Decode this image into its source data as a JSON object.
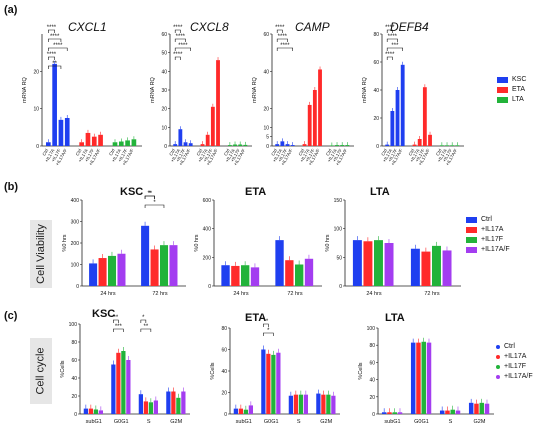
{
  "panel_labels": [
    "(a)",
    "(b)",
    "(c)"
  ],
  "colors": {
    "ctrl_blue": "#1f3ff0",
    "il17a_red": "#ff2a2a",
    "il17f_green": "#22b33a",
    "il17af_purple": "#a33df0",
    "sig_line": "#111111"
  },
  "legend_a": {
    "items": [
      "KSC",
      "ETA",
      "LTA"
    ]
  },
  "legend_b": {
    "items": [
      "Ctrl",
      "+IL17A",
      "+IL17F",
      "+IL17A/F"
    ]
  },
  "legend_c": {
    "items": [
      "Ctrl",
      "+IL17A",
      "+IL17F",
      "+IL17A/F"
    ]
  },
  "side_labels": {
    "b": "Cell Viability",
    "c": "Cell cycle"
  },
  "chart_data": [
    {
      "id": "a-cxcl1",
      "type": "bar",
      "title": "CXCL1",
      "ylabel": "mRNA RQ",
      "categories": [
        "Ctrl",
        "+IL17A",
        "+IL17F",
        "+IL17A/F"
      ],
      "series": [
        {
          "name": "KSC",
          "values": [
            1,
            22,
            7,
            7.5
          ]
        },
        {
          "name": "ETA",
          "values": [
            1,
            3.5,
            2.5,
            3
          ]
        },
        {
          "name": "LTA",
          "values": [
            1,
            1.2,
            1.5,
            1.8
          ]
        }
      ],
      "ylim": [
        0,
        30
      ],
      "ticks": [
        0,
        10,
        20
      ],
      "significance": [
        "****",
        "****",
        "****",
        "****",
        "**"
      ]
    },
    {
      "id": "a-cxcl8",
      "type": "bar",
      "title": "CXCL8",
      "ylabel": "mRNA RQ",
      "categories": [
        "Ctrl",
        "+IL17A",
        "+IL17F",
        "+IL17A/F"
      ],
      "series": [
        {
          "name": "KSC",
          "values": [
            1,
            9,
            2,
            1.5
          ]
        },
        {
          "name": "ETA",
          "values": [
            1,
            6,
            21,
            46
          ]
        },
        {
          "name": "LTA",
          "values": [
            0.5,
            0.8,
            0.8,
            0.6
          ]
        }
      ],
      "ylim": [
        0,
        60
      ],
      "ticks": [
        0,
        10,
        20,
        30,
        40,
        50,
        60
      ],
      "significance": [
        "****",
        "****",
        "****",
        "****"
      ]
    },
    {
      "id": "a-camp",
      "type": "bar",
      "title": "CAMP",
      "ylabel": "mRNA RQ",
      "categories": [
        "Ctrl",
        "+IL17A",
        "+IL17F",
        "+IL17A/F"
      ],
      "series": [
        {
          "name": "KSC",
          "values": [
            1,
            2.5,
            1,
            0.5
          ]
        },
        {
          "name": "ETA",
          "values": [
            1,
            22,
            30,
            41
          ]
        },
        {
          "name": "LTA",
          "values": [
            0.3,
            0.5,
            0.5,
            0.5
          ]
        }
      ],
      "ylim": [
        0,
        60
      ],
      "ticks": [
        0,
        5,
        10,
        20,
        40,
        60
      ],
      "significance": [
        "****",
        "****",
        "****"
      ]
    },
    {
      "id": "a-defb4",
      "type": "bar",
      "title": "DEFB4",
      "ylabel": "mRNA RQ",
      "categories": [
        "Ctrl",
        "+IL17A",
        "+IL17F",
        "+IL17A/F"
      ],
      "series": [
        {
          "name": "KSC",
          "values": [
            1,
            25,
            40,
            58
          ]
        },
        {
          "name": "ETA",
          "values": [
            1,
            5,
            42,
            8
          ]
        },
        {
          "name": "LTA",
          "values": [
            0.5,
            0.5,
            0.5,
            0.5
          ]
        }
      ],
      "ylim": [
        0,
        80
      ],
      "ticks": [
        0,
        20,
        40,
        60,
        80
      ],
      "significance": [
        "****",
        "****",
        "***",
        "****"
      ]
    },
    {
      "id": "b-ksc",
      "type": "bar",
      "title": "KSC",
      "ylabel": "%0 hrs",
      "categories": [
        "24 hrs",
        "72 hrs"
      ],
      "series": [
        {
          "name": "Ctrl",
          "values": [
            105,
            280
          ]
        },
        {
          "name": "+IL17A",
          "values": [
            130,
            170
          ]
        },
        {
          "name": "+IL17F",
          "values": [
            140,
            190
          ]
        },
        {
          "name": "+IL17A/F",
          "values": [
            150,
            190
          ]
        }
      ],
      "ylim": [
        0,
        400
      ],
      "ticks": [
        0,
        100,
        200,
        300,
        400
      ],
      "significance": [
        "*",
        "*",
        "**"
      ]
    },
    {
      "id": "b-eta",
      "type": "bar",
      "title": "ETA",
      "ylabel": "%0 hrs",
      "categories": [
        "24 hrs",
        "72 hrs"
      ],
      "series": [
        {
          "name": "Ctrl",
          "values": [
            145,
            320
          ]
        },
        {
          "name": "+IL17A",
          "values": [
            140,
            180
          ]
        },
        {
          "name": "+IL17F",
          "values": [
            145,
            150
          ]
        },
        {
          "name": "+IL17A/F",
          "values": [
            130,
            190
          ]
        }
      ],
      "ylim": [
        0,
        600
      ],
      "ticks": [
        0,
        200,
        400,
        600
      ],
      "significance": []
    },
    {
      "id": "b-lta",
      "type": "bar",
      "title": "LTA",
      "ylabel": "%0 hrs",
      "categories": [
        "24 hrs",
        "72 hrs"
      ],
      "series": [
        {
          "name": "Ctrl",
          "values": [
            80,
            65
          ]
        },
        {
          "name": "+IL17A",
          "values": [
            78,
            60
          ]
        },
        {
          "name": "+IL17F",
          "values": [
            80,
            70
          ]
        },
        {
          "name": "+IL17A/F",
          "values": [
            75,
            62
          ]
        }
      ],
      "ylim": [
        0,
        150
      ],
      "ticks": [
        0,
        50,
        100,
        150
      ],
      "significance": []
    },
    {
      "id": "c-ksc",
      "type": "bar",
      "title": "KSC",
      "ylabel": "%Cells",
      "categories": [
        "subG1",
        "G0G1",
        "S",
        "G2M"
      ],
      "series": [
        {
          "name": "Ctrl",
          "values": [
            6,
            55,
            22,
            25
          ]
        },
        {
          "name": "+IL17A",
          "values": [
            6,
            68,
            14,
            25
          ]
        },
        {
          "name": "+IL17F",
          "values": [
            5,
            70,
            13,
            18
          ]
        },
        {
          "name": "+IL17A/F",
          "values": [
            4,
            60,
            15,
            25
          ]
        }
      ],
      "ylim": [
        0,
        100
      ],
      "ticks": [
        0,
        20,
        40,
        60,
        80,
        100
      ],
      "significance": [
        "**",
        "***",
        "*",
        "**"
      ]
    },
    {
      "id": "c-eta",
      "type": "bar",
      "title": "ETA",
      "ylabel": "%Cells",
      "categories": [
        "subG1",
        "G0G1",
        "S",
        "G2M"
      ],
      "series": [
        {
          "name": "Ctrl",
          "values": [
            5,
            60,
            17,
            19
          ]
        },
        {
          "name": "+IL17A",
          "values": [
            5,
            56,
            18,
            18
          ]
        },
        {
          "name": "+IL17F",
          "values": [
            4,
            55,
            18,
            18
          ]
        },
        {
          "name": "+IL17A/F",
          "values": [
            8,
            57,
            18,
            17
          ]
        }
      ],
      "ylim": [
        0,
        80
      ],
      "ticks": [
        0,
        20,
        40,
        60,
        80
      ],
      "significance": [
        "**",
        "*"
      ]
    },
    {
      "id": "c-lta",
      "type": "bar",
      "title": "LTA",
      "ylabel": "%Cells",
      "categories": [
        "subG1",
        "G0G1",
        "S",
        "G2M"
      ],
      "series": [
        {
          "name": "Ctrl",
          "values": [
            2,
            83,
            4,
            13
          ]
        },
        {
          "name": "+IL17A",
          "values": [
            2,
            83,
            4,
            12
          ]
        },
        {
          "name": "+IL17F",
          "values": [
            2,
            84,
            5,
            13
          ]
        },
        {
          "name": "+IL17A/F",
          "values": [
            2,
            83,
            4,
            12
          ]
        }
      ],
      "ylim": [
        0,
        100
      ],
      "ticks": [
        0,
        20,
        40,
        60,
        80,
        100
      ],
      "significance": []
    }
  ]
}
